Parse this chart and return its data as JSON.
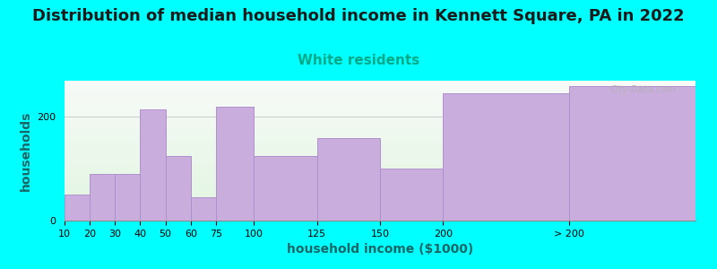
{
  "title": "Distribution of median household income in Kennett Square, PA in 2022",
  "subtitle": "White residents",
  "xlabel": "household income ($1000)",
  "ylabel": "households",
  "background_color": "#00FFFF",
  "bar_color": "#c9aedd",
  "bar_edge_color": "#b090cc",
  "categories": [
    "10",
    "20",
    "30",
    "40",
    "50",
    "60",
    "75",
    "100",
    "125",
    "150",
    "200",
    "> 200"
  ],
  "values": [
    50,
    90,
    90,
    215,
    125,
    45,
    220,
    125,
    160,
    100,
    245,
    260
  ],
  "widths_rel": [
    10,
    10,
    10,
    10,
    10,
    10,
    15,
    25,
    25,
    25,
    50,
    50
  ],
  "ylim": [
    0,
    270
  ],
  "yticks": [
    0,
    200
  ],
  "watermark": "City-Data.com",
  "title_fontsize": 13,
  "subtitle_fontsize": 11,
  "subtitle_color": "#00aa88",
  "title_color": "#1a1a1a",
  "axis_label_fontsize": 10,
  "tick_fontsize": 8
}
